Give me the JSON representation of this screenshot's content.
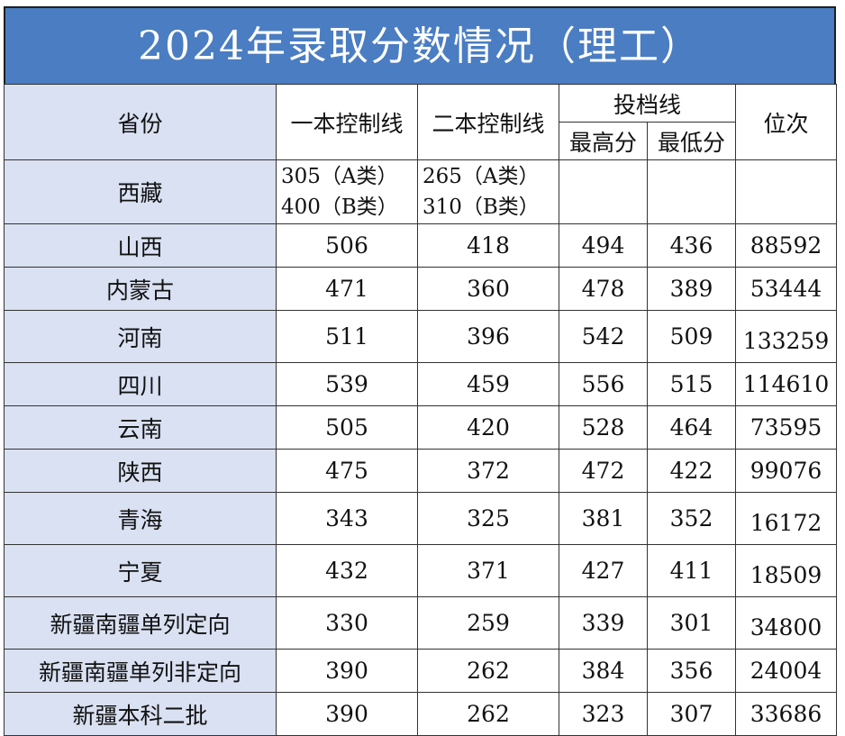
{
  "title": "2024年录取分数情况（理工）",
  "headers": {
    "province": "省份",
    "tier1": "一本控制线",
    "tier2": "二本控制线",
    "filing": "投档线",
    "highest": "最高分",
    "lowest": "最低分",
    "rank": "位次"
  },
  "tibet": {
    "province": "西藏",
    "tier1_a": "305（A类）",
    "tier1_b": "400（B类）",
    "tier2_a": "265（A类）",
    "tier2_b": "310（B类）",
    "highest": "",
    "lowest": "",
    "rank": ""
  },
  "rows": [
    {
      "province": "山西",
      "tier1": "506",
      "tier2": "418",
      "highest": "494",
      "lowest": "436",
      "rank": "88592"
    },
    {
      "province": "内蒙古",
      "tier1": "471",
      "tier2": "360",
      "highest": "478",
      "lowest": "389",
      "rank": "53444"
    },
    {
      "province": "河南",
      "tier1": "511",
      "tier2": "396",
      "highest": "542",
      "lowest": "509",
      "rank": "133259"
    },
    {
      "province": "四川",
      "tier1": "539",
      "tier2": "459",
      "highest": "556",
      "lowest": "515",
      "rank": "114610"
    },
    {
      "province": "云南",
      "tier1": "505",
      "tier2": "420",
      "highest": "528",
      "lowest": "464",
      "rank": "73595"
    },
    {
      "province": "陕西",
      "tier1": "475",
      "tier2": "372",
      "highest": "472",
      "lowest": "422",
      "rank": "99076"
    },
    {
      "province": "青海",
      "tier1": "343",
      "tier2": "325",
      "highest": "381",
      "lowest": "352",
      "rank": "16172"
    },
    {
      "province": "宁夏",
      "tier1": "432",
      "tier2": "371",
      "highest": "427",
      "lowest": "411",
      "rank": "18509"
    },
    {
      "province": "新疆南疆单列定向",
      "tier1": "330",
      "tier2": "259",
      "highest": "339",
      "lowest": "301",
      "rank": "34800"
    },
    {
      "province": "新疆南疆单列非定向",
      "tier1": "390",
      "tier2": "262",
      "highest": "384",
      "lowest": "356",
      "rank": "24004"
    },
    {
      "province": "新疆本科二批",
      "tier1": "390",
      "tier2": "262",
      "highest": "323",
      "lowest": "307",
      "rank": "33686"
    }
  ]
}
